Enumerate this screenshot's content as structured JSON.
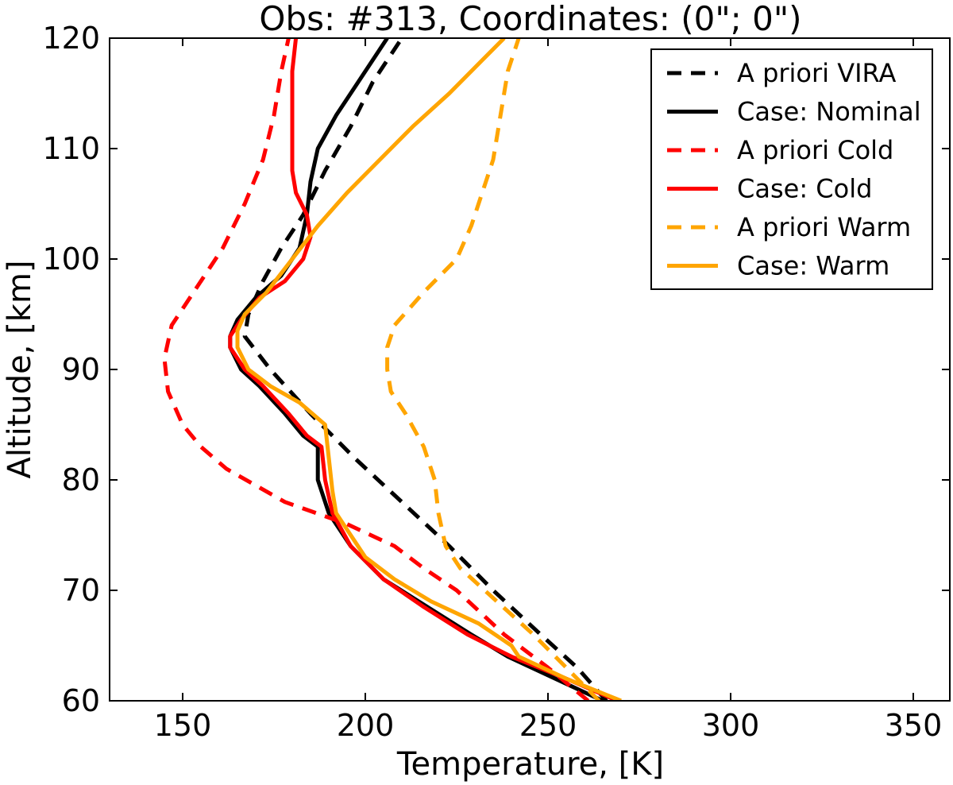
{
  "chart_data": {
    "type": "line",
    "title": "Obs: #313, Coordinates: (0\"; 0\")",
    "xlabel": "Temperature, [K]",
    "ylabel": "Altitude, [km]",
    "xlim": [
      130,
      360
    ],
    "ylim": [
      60,
      120
    ],
    "xticks": [
      150,
      200,
      250,
      300,
      350
    ],
    "yticks": [
      60,
      70,
      80,
      90,
      100,
      110,
      120
    ],
    "grid": false,
    "legend_position": "top-right",
    "series": [
      {
        "name": "A priori VIRA",
        "color": "#000000",
        "dash": true,
        "points": [
          [
            266,
            60
          ],
          [
            258,
            63
          ],
          [
            248,
            66
          ],
          [
            235,
            70
          ],
          [
            223,
            74
          ],
          [
            210,
            78
          ],
          [
            197,
            82
          ],
          [
            185,
            86
          ],
          [
            174,
            90
          ],
          [
            167,
            93
          ],
          [
            168,
            95
          ],
          [
            172,
            98
          ],
          [
            177,
            101
          ],
          [
            183,
            104
          ],
          [
            189,
            108
          ],
          [
            196,
            112
          ],
          [
            202,
            116
          ],
          [
            210,
            120
          ]
        ]
      },
      {
        "name": "Case: Nominal",
        "color": "#000000",
        "dash": false,
        "points": [
          [
            265,
            60
          ],
          [
            252,
            62
          ],
          [
            239,
            64
          ],
          [
            229,
            66
          ],
          [
            217,
            68.5
          ],
          [
            205,
            71
          ],
          [
            196,
            74
          ],
          [
            190,
            77
          ],
          [
            187,
            80
          ],
          [
            187,
            83
          ],
          [
            183,
            84
          ],
          [
            178,
            86
          ],
          [
            171,
            88.5
          ],
          [
            166,
            90
          ],
          [
            163,
            92
          ],
          [
            163,
            93
          ],
          [
            165,
            94.5
          ],
          [
            170,
            96.5
          ],
          [
            177,
            98.5
          ],
          [
            182,
            101
          ],
          [
            184,
            104
          ],
          [
            185,
            107
          ],
          [
            187,
            110
          ],
          [
            192,
            113
          ],
          [
            198,
            116
          ],
          [
            206,
            120
          ]
        ]
      },
      {
        "name": "A priori Cold",
        "color": "#ff0000",
        "dash": true,
        "points": [
          [
            261,
            60
          ],
          [
            250,
            63
          ],
          [
            238,
            66
          ],
          [
            225,
            70
          ],
          [
            216,
            72
          ],
          [
            208,
            74
          ],
          [
            195,
            76
          ],
          [
            178,
            78
          ],
          [
            162,
            81
          ],
          [
            155,
            83
          ],
          [
            150,
            85
          ],
          [
            146,
            88
          ],
          [
            145,
            91
          ],
          [
            147,
            94
          ],
          [
            153,
            97
          ],
          [
            161,
            101
          ],
          [
            167,
            105
          ],
          [
            172,
            109
          ],
          [
            175,
            113
          ],
          [
            177,
            117
          ],
          [
            179,
            120
          ]
        ]
      },
      {
        "name": "Case: Cold",
        "color": "#ff0000",
        "dash": false,
        "points": [
          [
            269,
            60
          ],
          [
            255,
            62
          ],
          [
            240,
            64
          ],
          [
            228,
            66
          ],
          [
            216,
            68.5
          ],
          [
            205,
            71
          ],
          [
            196,
            74
          ],
          [
            191,
            77
          ],
          [
            189,
            80
          ],
          [
            188,
            83
          ],
          [
            184,
            84
          ],
          [
            179,
            86
          ],
          [
            172,
            88.5
          ],
          [
            167,
            90
          ],
          [
            163,
            92
          ],
          [
            163,
            93
          ],
          [
            166,
            94.5
          ],
          [
            171,
            96.5
          ],
          [
            178,
            98
          ],
          [
            183,
            100
          ],
          [
            185,
            102
          ],
          [
            184,
            104
          ],
          [
            181,
            106
          ],
          [
            180,
            108
          ],
          [
            180,
            110
          ],
          [
            180,
            114
          ],
          [
            180,
            117
          ],
          [
            181,
            120
          ]
        ]
      },
      {
        "name": "A priori Warm",
        "color": "#ffa500",
        "dash": true,
        "points": [
          [
            264,
            60
          ],
          [
            255,
            63
          ],
          [
            246,
            66
          ],
          [
            236,
            69
          ],
          [
            226,
            72
          ],
          [
            222,
            74
          ],
          [
            220,
            77
          ],
          [
            219,
            80
          ],
          [
            216,
            83
          ],
          [
            211,
            86
          ],
          [
            207,
            88
          ],
          [
            206,
            90
          ],
          [
            206,
            92
          ],
          [
            208,
            94
          ],
          [
            216,
            97
          ],
          [
            225,
            100
          ],
          [
            229,
            103
          ],
          [
            232,
            106
          ],
          [
            235,
            109
          ],
          [
            237,
            113
          ],
          [
            239,
            117
          ],
          [
            242,
            120
          ]
        ]
      },
      {
        "name": "Case: Warm",
        "color": "#ffa500",
        "dash": false,
        "points": [
          [
            270,
            60
          ],
          [
            255,
            62
          ],
          [
            242,
            64
          ],
          [
            240,
            65
          ],
          [
            231,
            67
          ],
          [
            218,
            69
          ],
          [
            208,
            71
          ],
          [
            200,
            73
          ],
          [
            196,
            75
          ],
          [
            192,
            77
          ],
          [
            191,
            79
          ],
          [
            190,
            82
          ],
          [
            189,
            85
          ],
          [
            182,
            87
          ],
          [
            174,
            88.5
          ],
          [
            168,
            90
          ],
          [
            165,
            92
          ],
          [
            165,
            93.5
          ],
          [
            167,
            95
          ],
          [
            173,
            97
          ],
          [
            180,
            100
          ],
          [
            187,
            103
          ],
          [
            195,
            106
          ],
          [
            204,
            109
          ],
          [
            213,
            112
          ],
          [
            223,
            115
          ],
          [
            232,
            118
          ],
          [
            238,
            120
          ]
        ]
      }
    ]
  }
}
